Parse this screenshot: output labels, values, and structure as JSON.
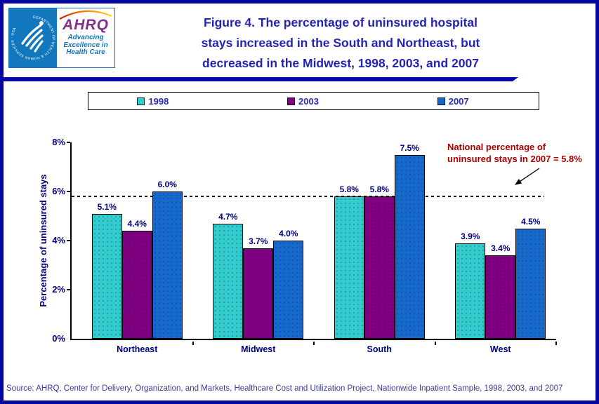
{
  "header": {
    "logo": {
      "hhs_ring_text": "DEPARTMENT OF HEALTH & HUMAN SERVICES · USA",
      "ahrq_acronym": "AHRQ",
      "tagline_lines": [
        "Advancing",
        "Excellence in",
        "Health Care"
      ]
    },
    "title_lines": [
      "Figure 4. The percentage of uninsured hospital",
      "stays increased in the South and Northeast, but",
      "decreased in the Midwest, 1998, 2003, and 2007"
    ]
  },
  "legend": {
    "items": [
      {
        "label": "1998",
        "color": "#33CCCC"
      },
      {
        "label": "2003",
        "color": "#800080"
      },
      {
        "label": "2007",
        "color": "#1569C8"
      }
    ]
  },
  "chart_data": {
    "type": "bar",
    "title": "Figure 4. The percentage of uninsured hospital stays increased in the South and Northeast, but decreased in the Midwest, 1998, 2003, and 2007",
    "categories": [
      "Northeast",
      "Midwest",
      "South",
      "West"
    ],
    "series": [
      {
        "name": "1998",
        "color": "#33CCCC",
        "values": [
          5.1,
          4.7,
          5.8,
          3.9
        ]
      },
      {
        "name": "2003",
        "color": "#800080",
        "values": [
          4.4,
          3.7,
          5.8,
          3.4
        ]
      },
      {
        "name": "2007",
        "color": "#1569C8",
        "values": [
          6.0,
          4.0,
          7.5,
          4.5
        ]
      }
    ],
    "xlabel": "",
    "ylabel": "Percentage of uninsured stays",
    "ylim": [
      0,
      8
    ],
    "yticks": [
      0,
      2,
      4,
      6,
      8
    ],
    "ytick_labels": [
      "0%",
      "2%",
      "4%",
      "6%",
      "8%"
    ],
    "grid": false,
    "legend_position": "top",
    "value_label_suffix": "%",
    "reference_line": {
      "value": 5.8,
      "style": "dashed",
      "color": "#000000"
    },
    "annotation": {
      "lines": [
        "National percentage of",
        "uninsured stays in 2007 = 5.8%"
      ],
      "color": "#AA0000"
    }
  },
  "source": "Source: AHRQ, Center for Delivery, Organization, and Markets, Healthcare Cost and Utilization Project, Nationwide Inpatient Sample, 1998, 2003, and 2007",
  "palette": {
    "frame_border": "#0505A0",
    "divider": "#0808AC",
    "title_blue": "#2525B2",
    "chart_text_navy": "#00007D",
    "annotation_red": "#AA0000",
    "hhs_logo_blue": "#1377BD",
    "ahrq_purple": "#822E8C"
  }
}
